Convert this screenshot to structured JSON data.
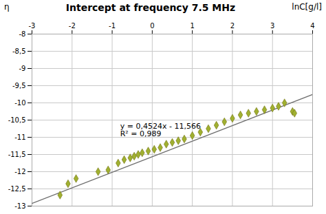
{
  "chart_data": {
    "type": "scatter",
    "title": "Intercept at frequency 7.5 MHz",
    "ylabel": "η",
    "xlabel": "lnC[g/l]",
    "xlim": [
      -3,
      4
    ],
    "ylim": [
      -13,
      -8
    ],
    "xticks": [
      -3,
      -2,
      -1,
      0,
      1,
      2,
      3,
      4
    ],
    "yticks": [
      -8,
      {
        "value": -8.5,
        "label": "-8,5"
      },
      -9,
      {
        "value": -9.5,
        "label": "-9,5"
      },
      -10,
      {
        "value": -10.5,
        "label": "-10,5"
      },
      -11,
      {
        "value": -11.5,
        "label": "-11,5"
      },
      -12,
      {
        "value": -12.5,
        "label": "-12,5"
      },
      -13
    ],
    "grid": true,
    "series": [
      {
        "type": "scatter",
        "marker": "diamond",
        "color": "#a0b030",
        "edge_color": "#707010",
        "x": [
          -2.3,
          -2.1,
          -1.9,
          -1.35,
          -1.1,
          -0.85,
          -0.7,
          -0.55,
          -0.45,
          -0.35,
          -0.25,
          -0.1,
          0.05,
          0.2,
          0.35,
          0.5,
          0.65,
          0.8,
          1.0,
          1.2,
          1.4,
          1.6,
          1.8,
          2.0,
          2.2,
          2.4,
          2.6,
          2.8,
          3.0,
          3.15,
          3.3,
          3.5,
          3.55
        ],
        "values": [
          -12.68,
          -12.35,
          -12.2,
          -12.0,
          -11.95,
          -11.75,
          -11.65,
          -11.6,
          -11.55,
          -11.5,
          -11.45,
          -11.4,
          -11.35,
          -11.3,
          -11.2,
          -11.15,
          -11.1,
          -11.05,
          -10.95,
          -10.85,
          -10.75,
          -10.65,
          -10.55,
          -10.45,
          -10.35,
          -10.3,
          -10.25,
          -10.2,
          -10.15,
          -10.1,
          -10.0,
          -10.25,
          -10.3
        ]
      },
      {
        "type": "line",
        "line_style": "solid",
        "color": "#707070",
        "x": [
          -3,
          4
        ],
        "values": [
          -12.9232,
          -9.7564
        ]
      }
    ],
    "annotations": [
      {
        "x": -0.8,
        "y": -10.6,
        "text": "y = 0,4524x - 11,566\nR² = 0,989"
      }
    ]
  }
}
